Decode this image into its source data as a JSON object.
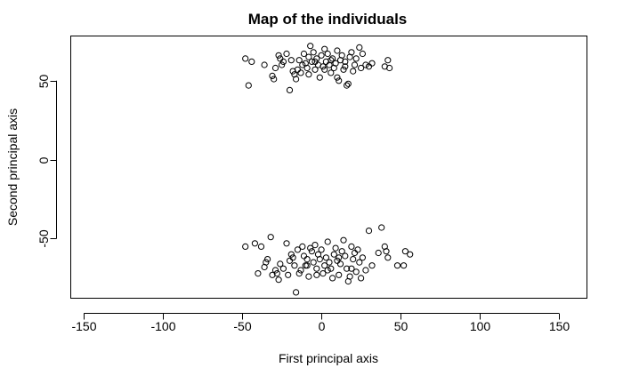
{
  "chart_data": {
    "type": "scatter",
    "title": "Map of the individuals",
    "xlabel": "First principal axis",
    "ylabel": "Second principal axis",
    "xlim": [
      -158,
      168
    ],
    "ylim": [
      -88,
      78
    ],
    "xticks": [
      -150,
      -100,
      -50,
      0,
      50,
      100,
      150
    ],
    "yticks": [
      -50,
      0,
      50
    ],
    "marker": "open-circle",
    "grid": false,
    "points": [
      [
        -48,
        64
      ],
      [
        -44,
        62
      ],
      [
        -36,
        60
      ],
      [
        -31,
        53
      ],
      [
        -30,
        51
      ],
      [
        -27,
        66
      ],
      [
        -26,
        64
      ],
      [
        -24,
        62
      ],
      [
        -22,
        67
      ],
      [
        -20,
        44
      ],
      [
        -18,
        56
      ],
      [
        -17,
        54
      ],
      [
        -16,
        51
      ],
      [
        -14,
        63
      ],
      [
        -13,
        55
      ],
      [
        -12,
        60
      ],
      [
        -11,
        67
      ],
      [
        -10,
        61
      ],
      [
        -9,
        58
      ],
      [
        -8,
        65
      ],
      [
        -7,
        72
      ],
      [
        -6,
        62
      ],
      [
        -5,
        68
      ],
      [
        -4,
        57
      ],
      [
        -3,
        64
      ],
      [
        -2,
        60
      ],
      [
        -1,
        52
      ],
      [
        0,
        66
      ],
      [
        1,
        59
      ],
      [
        2,
        70
      ],
      [
        3,
        62
      ],
      [
        4,
        67
      ],
      [
        5,
        60
      ],
      [
        6,
        55
      ],
      [
        7,
        64
      ],
      [
        8,
        58
      ],
      [
        9,
        61
      ],
      [
        10,
        69
      ],
      [
        11,
        50
      ],
      [
        12,
        63
      ],
      [
        13,
        66
      ],
      [
        14,
        57
      ],
      [
        15,
        62
      ],
      [
        16,
        47
      ],
      [
        17,
        48
      ],
      [
        18,
        65
      ],
      [
        19,
        68
      ],
      [
        20,
        56
      ],
      [
        21,
        60
      ],
      [
        22,
        64
      ],
      [
        24,
        71
      ],
      [
        25,
        58
      ],
      [
        26,
        67
      ],
      [
        28,
        60
      ],
      [
        30,
        59
      ],
      [
        32,
        61
      ],
      [
        40,
        59
      ],
      [
        42,
        63
      ],
      [
        43,
        58
      ],
      [
        -46,
        47
      ],
      [
        -29,
        58
      ],
      [
        -25,
        60
      ],
      [
        -19,
        63
      ],
      [
        -15,
        57
      ],
      [
        -8,
        54
      ],
      [
        -4,
        62
      ],
      [
        2,
        57
      ],
      [
        6,
        63
      ],
      [
        10,
        52
      ],
      [
        15,
        59
      ],
      [
        -48,
        -55
      ],
      [
        -42,
        -53
      ],
      [
        -40,
        -72
      ],
      [
        -38,
        -55
      ],
      [
        -36,
        -68
      ],
      [
        -35,
        -65
      ],
      [
        -34,
        -63
      ],
      [
        -32,
        -49
      ],
      [
        -31,
        -73
      ],
      [
        -29,
        -70
      ],
      [
        -27,
        -76
      ],
      [
        -26,
        -66
      ],
      [
        -24,
        -69
      ],
      [
        -22,
        -53
      ],
      [
        -21,
        -73
      ],
      [
        -20,
        -64
      ],
      [
        -19,
        -60
      ],
      [
        -18,
        -62
      ],
      [
        -17,
        -67
      ],
      [
        -16,
        -84
      ],
      [
        -15,
        -57
      ],
      [
        -14,
        -72
      ],
      [
        -13,
        -70
      ],
      [
        -12,
        -55
      ],
      [
        -11,
        -61
      ],
      [
        -10,
        -67
      ],
      [
        -9,
        -63
      ],
      [
        -8,
        -74
      ],
      [
        -7,
        -56
      ],
      [
        -6,
        -58
      ],
      [
        -5,
        -65
      ],
      [
        -4,
        -54
      ],
      [
        -3,
        -69
      ],
      [
        -2,
        -60
      ],
      [
        -1,
        -63
      ],
      [
        0,
        -57
      ],
      [
        1,
        -72
      ],
      [
        2,
        -67
      ],
      [
        3,
        -62
      ],
      [
        4,
        -52
      ],
      [
        5,
        -65
      ],
      [
        6,
        -69
      ],
      [
        7,
        -75
      ],
      [
        8,
        -60
      ],
      [
        9,
        -56
      ],
      [
        10,
        -64
      ],
      [
        11,
        -73
      ],
      [
        12,
        -66
      ],
      [
        13,
        -58
      ],
      [
        14,
        -51
      ],
      [
        15,
        -61
      ],
      [
        16,
        -69
      ],
      [
        17,
        -77
      ],
      [
        18,
        -74
      ],
      [
        19,
        -55
      ],
      [
        20,
        -63
      ],
      [
        21,
        -59
      ],
      [
        22,
        -71
      ],
      [
        23,
        -57
      ],
      [
        24,
        -65
      ],
      [
        25,
        -75
      ],
      [
        26,
        -62
      ],
      [
        28,
        -70
      ],
      [
        30,
        -45
      ],
      [
        32,
        -67
      ],
      [
        38,
        -43
      ],
      [
        40,
        -55
      ],
      [
        41,
        -58
      ],
      [
        42,
        -62
      ],
      [
        48,
        -67
      ],
      [
        52,
        -67
      ],
      [
        53,
        -58
      ],
      [
        56,
        -60
      ],
      [
        36,
        -59
      ],
      [
        -28,
        -72
      ],
      [
        -3,
        -73
      ],
      [
        4,
        -70
      ],
      [
        11,
        -62
      ],
      [
        19,
        -69
      ],
      [
        -9,
        -67
      ]
    ]
  }
}
